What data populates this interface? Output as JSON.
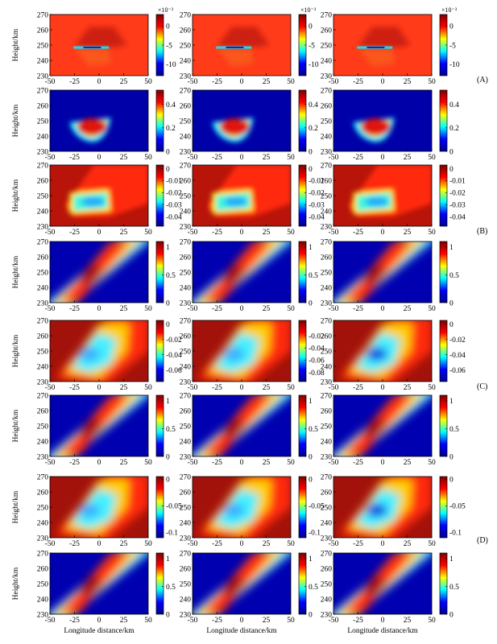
{
  "figure": {
    "groups": [
      {
        "label": "(A)",
        "rows": [
          0,
          1
        ]
      },
      {
        "label": "(B)",
        "rows": [
          2,
          3
        ]
      },
      {
        "label": "(C)",
        "rows": [
          4,
          5
        ]
      },
      {
        "label": "(D)",
        "rows": [
          6,
          7
        ]
      }
    ],
    "ylabel": "Height/km",
    "xlabel": "Longitude distance/km"
  },
  "chart_data": {
    "type": "heatmap",
    "panel_grid": {
      "rows": 8,
      "cols": 3
    },
    "xlim": [
      -50,
      50
    ],
    "ylim": [
      230,
      270
    ],
    "xticks": [
      -50,
      -25,
      0,
      25,
      50
    ],
    "yticks": [
      230,
      240,
      250,
      260,
      270
    ],
    "xlabel": "Longitude distance/km",
    "ylabel": "Height/km",
    "colormap": [
      "#00008f",
      "#0000ff",
      "#00ffff",
      "#ffff00",
      "#ff0000",
      "#800000"
    ],
    "rows": [
      {
        "group": "(A)",
        "pattern": "thin_layer",
        "colorbar": {
          "min": -13,
          "max": 3,
          "ticks": [
            {
              "v": 0,
              "t": "0"
            },
            {
              "v": -5,
              "t": "-5"
            },
            {
              "v": -10,
              "t": "-10"
            }
          ],
          "multiplier": "×10⁻³"
        }
      },
      {
        "group": "(A)",
        "pattern": "bowl",
        "colorbar": {
          "min": 0,
          "max": 0.52,
          "ticks": [
            {
              "v": 0,
              "t": "0"
            },
            {
              "v": 0.2,
              "t": "0.2"
            },
            {
              "v": 0.4,
              "t": "0.4"
            }
          ]
        }
      },
      {
        "group": "(B)",
        "pattern": "depletion_box",
        "colorbar": {
          "min": -0.048,
          "max": 0.003,
          "ticks": [
            {
              "v": 0,
              "t": "0"
            },
            {
              "v": -0.01,
              "t": "-0.01"
            },
            {
              "v": -0.02,
              "t": "-0.02"
            },
            {
              "v": -0.03,
              "t": "-0.03"
            },
            {
              "v": -0.04,
              "t": "-0.04"
            }
          ]
        }
      },
      {
        "group": "(B)",
        "pattern": "diagonal",
        "colorbar": {
          "min": 0,
          "max": 1.1,
          "ticks": [
            {
              "v": 0,
              "t": "0"
            },
            {
              "v": 0.5,
              "t": "0.5"
            },
            {
              "v": 1,
              "t": "1"
            }
          ]
        }
      },
      {
        "group": "(C)",
        "pattern": "depletion_rhombus",
        "colorbar_per_col": [
          {
            "min": -0.075,
            "max": 0.005,
            "ticks": [
              {
                "v": 0,
                "t": "0"
              },
              {
                "v": -0.02,
                "t": "-0.02"
              },
              {
                "v": -0.04,
                "t": "-0.04"
              },
              {
                "v": -0.06,
                "t": "-0.06"
              }
            ]
          },
          {
            "min": -0.095,
            "max": 0.005,
            "ticks": [
              {
                "v": -0.02,
                "t": "-0.02"
              },
              {
                "v": -0.04,
                "t": "-0.04"
              },
              {
                "v": -0.06,
                "t": "-0.06"
              },
              {
                "v": -0.08,
                "t": "-0.08"
              }
            ]
          },
          {
            "min": -0.075,
            "max": 0.005,
            "ticks": [
              {
                "v": 0,
                "t": "0"
              },
              {
                "v": -0.02,
                "t": "-0.02"
              },
              {
                "v": -0.04,
                "t": "-0.04"
              },
              {
                "v": -0.06,
                "t": "-0.06"
              }
            ]
          }
        ]
      },
      {
        "group": "(C)",
        "pattern": "diagonal",
        "colorbar": {
          "min": 0,
          "max": 1.1,
          "ticks": [
            {
              "v": 0,
              "t": "0"
            },
            {
              "v": 0.5,
              "t": "0.5"
            },
            {
              "v": 1,
              "t": "1"
            }
          ]
        }
      },
      {
        "group": "(D)",
        "pattern": "depletion_rhombus",
        "colorbar": {
          "min": -0.11,
          "max": 0.005,
          "ticks": [
            {
              "v": 0,
              "t": "0"
            },
            {
              "v": -0.05,
              "t": "-0.05"
            },
            {
              "v": -0.1,
              "t": "-0.1"
            }
          ]
        }
      },
      {
        "group": "(D)",
        "pattern": "diagonal",
        "colorbar": {
          "min": 0,
          "max": 1.1,
          "ticks": [
            {
              "v": 0,
              "t": "0"
            },
            {
              "v": 0.5,
              "t": "0.5"
            },
            {
              "v": 1,
              "t": "1"
            }
          ]
        }
      }
    ]
  }
}
